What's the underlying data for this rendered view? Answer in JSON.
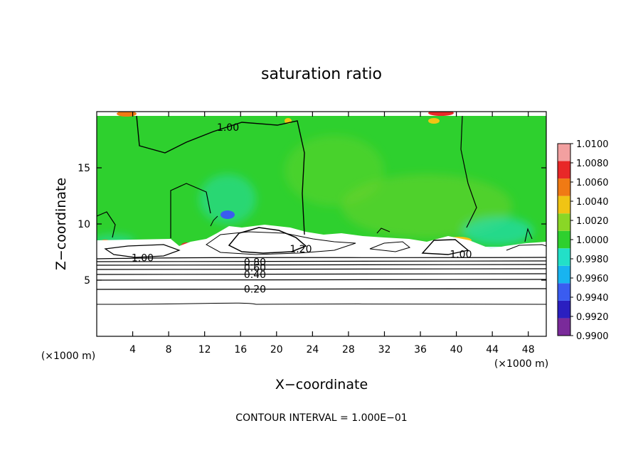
{
  "chart_data": {
    "type": "heatmap",
    "title": "saturation ratio",
    "xlabel": "X−coordinate",
    "ylabel": "Z−coordinate",
    "x_unit": "(×1000 m)",
    "y_unit": "(×1000 m)",
    "xlim": [
      0,
      50
    ],
    "ylim": [
      0,
      20
    ],
    "x_ticks": [
      4,
      8,
      12,
      16,
      20,
      24,
      28,
      32,
      36,
      40,
      44,
      48
    ],
    "y_ticks": [
      5,
      10,
      15
    ],
    "x_tick_labels": [
      "4",
      "8",
      "12",
      "16",
      "20",
      "24",
      "28",
      "32",
      "36",
      "40",
      "44",
      "48"
    ],
    "y_tick_labels": [
      "5",
      "10",
      "15"
    ],
    "colorbar": {
      "levels": [
        0.99,
        0.992,
        0.994,
        0.996,
        0.998,
        1.0,
        1.002,
        1.004,
        1.006,
        1.008,
        1.01
      ],
      "labels": [
        "0.9900",
        "0.9920",
        "0.9940",
        "0.9960",
        "0.9980",
        "1.0000",
        "1.0020",
        "1.0040",
        "1.0060",
        "1.0080",
        "1.0100"
      ],
      "colors": [
        "#7a2a9a",
        "#2a1fc0",
        "#3a5cf0",
        "#18b4f0",
        "#22e0c8",
        "#2ed02e",
        "#8ad626",
        "#f0c414",
        "#f07a14",
        "#e82828",
        "#f2a0a0"
      ]
    },
    "contour_labels": [
      {
        "text": "1.00",
        "x": 14.6,
        "z": 18.6
      },
      {
        "text": "1.00",
        "x": 5.1,
        "z": 7.0
      },
      {
        "text": "1.20",
        "x": 22.7,
        "z": 7.8
      },
      {
        "text": "1.00",
        "x": 40.5,
        "z": 7.3
      },
      {
        "text": "0.80",
        "x": 17.6,
        "z": 6.6
      },
      {
        "text": "0.60",
        "x": 17.6,
        "z": 6.1
      },
      {
        "text": "0.40",
        "x": 17.6,
        "z": 5.5
      },
      {
        "text": "0.20",
        "x": 17.6,
        "z": 4.2
      }
    ],
    "grid": false,
    "legend": "right"
  },
  "footnote": "CONTOUR INTERVAL = 1.000E−01"
}
